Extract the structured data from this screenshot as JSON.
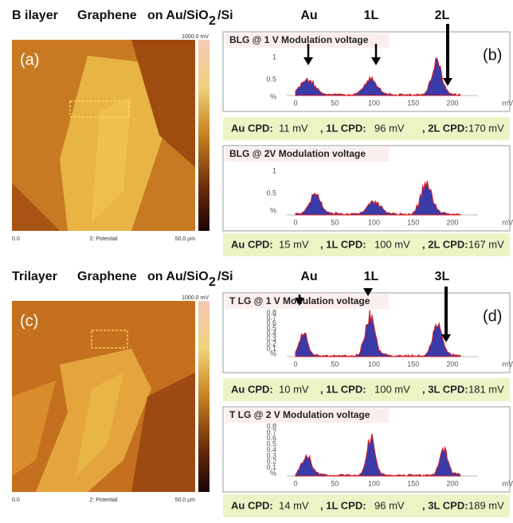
{
  "rows": [
    {
      "heading": {
        "material": "B ilayer",
        "name": "Graphene",
        "substrate": "on Au/SiO",
        "subscript": "2",
        "suffix": "/Si"
      },
      "peak_labels": [
        "Au",
        "1L",
        "2L"
      ],
      "image": {
        "label": "(a)",
        "colorbar_max": "1000.0 mV",
        "x_start": "0.0",
        "channel": "2: Potential",
        "x_end": "50.0 µm"
      },
      "panels": [
        {
          "label": "(b)",
          "title": "BLG @ 1   V Modulation voltage",
          "yticks": [
            "1",
            "0.5",
            "%"
          ],
          "xticks": [
            "0",
            "50",
            "100",
            "150",
            "200",
            "mV"
          ],
          "cpd": [
            "Au CPD:",
            "11 mV",
            ", 1L CPD:",
            "96 mV",
            ", 2L CPD:",
            "170 mV"
          ]
        },
        {
          "title": "BLG @ 2V   Modulation voltage",
          "yticks": [
            "1",
            "0.5",
            "%"
          ],
          "xticks": [
            "0",
            "50",
            "100",
            "150",
            "200",
            "mV"
          ],
          "cpd": [
            "Au CPD:",
            "15 mV",
            ", 1L CPD:",
            "100 mV",
            ", 2L CPD:",
            "167 mV"
          ]
        }
      ]
    },
    {
      "heading": {
        "material": "Trilayer",
        "name": "Graphene",
        "substrate": "on Au/SiO",
        "subscript": "2",
        "suffix": "/Si"
      },
      "peak_labels": [
        "Au",
        "1L",
        "3L"
      ],
      "image": {
        "label": "(c)",
        "colorbar_max": "1000.0 mV",
        "x_start": "0.0",
        "channel": "2: Potential",
        "x_end": "50.0 µm"
      },
      "panels": [
        {
          "label": "(d)",
          "title": "T LG @ 1   V Modulation voltage",
          "yticks": [
            "0.8",
            "0.7",
            "0.6",
            "0.5",
            "0.4",
            "0.3",
            "0.2",
            "0.1",
            "%"
          ],
          "xticks": [
            "0",
            "50",
            "100",
            "150",
            "200",
            "mV"
          ],
          "cpd": [
            "Au CPD:",
            "10 mV",
            ", 1L CPD:",
            "100 mV",
            ", 3L CPD:",
            "181 mV"
          ]
        },
        {
          "title": "T LG @ 2 V   Modulation voltage",
          "yticks": [
            "0.8",
            "0.7",
            "0.6",
            "0.5",
            "0.4",
            "0.3",
            "0.2",
            "0.1",
            "%"
          ],
          "xticks": [
            "0",
            "50",
            "100",
            "150",
            "200",
            "mV"
          ],
          "cpd": [
            "Au CPD:",
            "14 mV",
            ", 1L CPD:",
            "96 mV",
            ", 3L CPD:",
            "189 mV"
          ]
        }
      ]
    }
  ]
}
